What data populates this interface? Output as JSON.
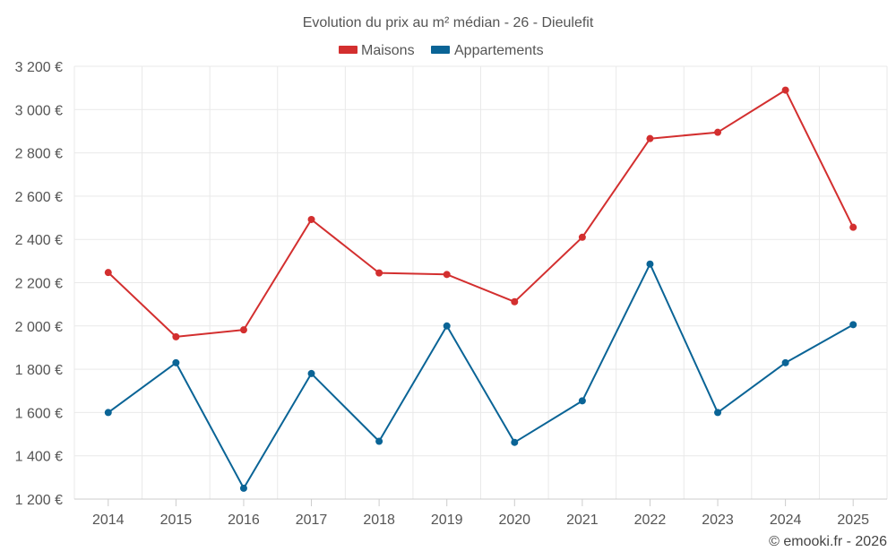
{
  "chart_data": {
    "type": "line",
    "title": "Evolution du prix au m² médian - 26 - Dieulefit",
    "categories": [
      "2014",
      "2015",
      "2016",
      "2017",
      "2018",
      "2019",
      "2020",
      "2021",
      "2022",
      "2023",
      "2024",
      "2025"
    ],
    "series": [
      {
        "name": "Maisons",
        "color": "#d32f2f",
        "values": [
          2247,
          1950,
          1982,
          2492,
          2245,
          2238,
          2112,
          2410,
          2866,
          2895,
          3090,
          2456
        ]
      },
      {
        "name": "Appartements",
        "color": "#0a6496",
        "values": [
          1600,
          1830,
          1250,
          1780,
          1467,
          2000,
          1462,
          1654,
          2286,
          1600,
          1830,
          2006
        ]
      }
    ],
    "ylim": [
      1200,
      3200
    ],
    "yticks": [
      1200,
      1400,
      1600,
      1800,
      2000,
      2200,
      2400,
      2600,
      2800,
      3000,
      3200
    ],
    "ytick_labels": [
      "1 200 €",
      "1 400 €",
      "1 600 €",
      "1 800 €",
      "2 000 €",
      "2 200 €",
      "2 400 €",
      "2 600 €",
      "2 800 €",
      "3 000 €",
      "3 200 €"
    ],
    "xlabel": "",
    "ylabel": "",
    "grid": true,
    "legend": "top-center"
  },
  "credit": "© emooki.fr - 2026"
}
